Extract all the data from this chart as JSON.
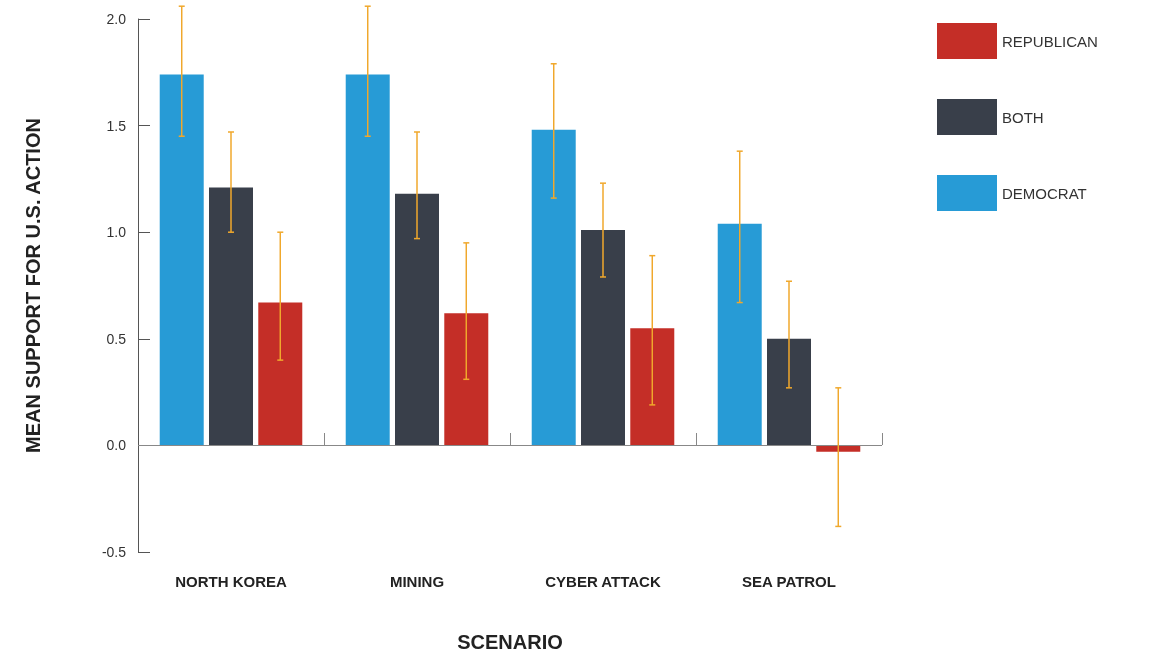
{
  "chart_data": {
    "type": "bar",
    "xlabel": "SCENARIO",
    "ylabel": "MEAN SUPPORT FOR U.S. ACTION",
    "categories": [
      "NORTH KOREA",
      "MINING",
      "CYBER ATTACK",
      "SEA PATROL"
    ],
    "series": [
      {
        "name": "DEMOCRAT",
        "color": "#279bd6",
        "values": [
          1.74,
          1.74,
          1.48,
          1.04
        ],
        "errors": [
          [
            1.45,
            2.06
          ],
          [
            1.45,
            2.06
          ],
          [
            1.16,
            1.79
          ],
          [
            0.67,
            1.38
          ]
        ]
      },
      {
        "name": "BOTH",
        "color": "#393f4a",
        "values": [
          1.21,
          1.18,
          1.01,
          0.5
        ],
        "errors": [
          [
            1.0,
            1.47
          ],
          [
            0.97,
            1.47
          ],
          [
            0.79,
            1.23
          ],
          [
            0.27,
            0.77
          ]
        ]
      },
      {
        "name": "REPUBLICAN",
        "color": "#c42e27",
        "values": [
          0.67,
          0.62,
          0.55,
          -0.03
        ],
        "errors": [
          [
            0.4,
            1.0
          ],
          [
            0.31,
            0.95
          ],
          [
            0.19,
            0.89
          ],
          [
            -0.38,
            0.27
          ]
        ]
      }
    ],
    "ylim": [
      -0.5,
      2.0
    ],
    "yticks": [
      {
        "value": -0.5,
        "label": "-0.5"
      },
      {
        "value": 0,
        "label": "0.0"
      },
      {
        "value": 0.5,
        "label": "0.5"
      },
      {
        "value": 1,
        "label": "1.0"
      },
      {
        "value": 1.5,
        "label": "1.5"
      },
      {
        "value": 2,
        "label": "2.0"
      }
    ],
    "ref_lines": [
      {
        "axis": "y",
        "value": 0,
        "color": "#888888"
      }
    ],
    "grid": false,
    "legend": "top right"
  }
}
